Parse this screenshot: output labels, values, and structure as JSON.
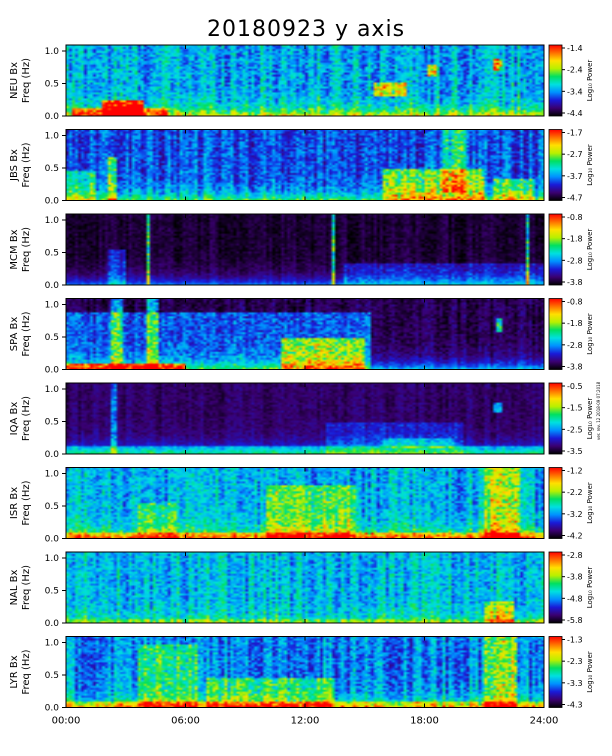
{
  "title": "20180923 y axis",
  "side_note": "ver. rev. 12 2018-09 07:2018",
  "chart_data": {
    "type": "heatmap",
    "x_ticks": [
      "00:00",
      "06:00",
      "12:00",
      "18:00",
      "24:00"
    ],
    "x_range_hours": [
      0,
      24
    ],
    "y_ticks": [
      "0.0",
      "0.5",
      "1.0"
    ],
    "y_range_hz": [
      0,
      1.0
    ],
    "colorbar_label": "Log₁₀ Power",
    "colormap": [
      "#000000",
      "#3a0070",
      "#1a1ad8",
      "#0090ff",
      "#00e0e0",
      "#00e060",
      "#b8f000",
      "#ffe000",
      "#ff7000",
      "#ff0000"
    ],
    "panels": [
      {
        "station": "NEU",
        "ylabel": "NEU Bx",
        "ylabel2": "Freq (Hz)",
        "cb_ticks": [
          "-1.4",
          "-2.4",
          "-3.4",
          "-4.4"
        ],
        "base": 0.38,
        "noise": 0.22,
        "lowboost": 0.35,
        "events": [
          [
            1.8,
            3.8,
            0.0,
            0.2,
            0.55
          ],
          [
            0.3,
            5.0,
            0.0,
            0.1,
            0.3
          ],
          [
            15.5,
            17.2,
            0.28,
            0.48,
            0.35
          ],
          [
            18.2,
            18.6,
            0.55,
            0.72,
            0.4
          ],
          [
            21.5,
            21.9,
            0.65,
            0.8,
            0.4
          ]
        ]
      },
      {
        "station": "JBS",
        "ylabel": "JBS Bx",
        "ylabel2": "Freq (Hz)",
        "cb_ticks": [
          "-1.7",
          "-2.7",
          "-3.7",
          "-4.7"
        ],
        "base": 0.27,
        "noise": 0.18,
        "lowboost": 0.3,
        "events": [
          [
            16.0,
            21.0,
            0.0,
            0.45,
            0.32
          ],
          [
            2.0,
            2.5,
            0.0,
            0.6,
            0.3
          ],
          [
            19.0,
            20.2,
            0.1,
            1.0,
            0.25
          ],
          [
            21.5,
            23.6,
            0.0,
            0.3,
            0.25
          ],
          [
            0,
            1.5,
            0.0,
            0.4,
            0.2
          ]
        ]
      },
      {
        "station": "MCM",
        "ylabel": "MCM Bx",
        "ylabel2": "Freq (Hz)",
        "cb_ticks": [
          "-0.8",
          "-1.8",
          "-2.8",
          "-3.8"
        ],
        "base": 0.05,
        "noise": 0.07,
        "lowboost": 0.25,
        "events": [
          [
            14.0,
            24.0,
            0.0,
            0.3,
            0.12
          ],
          [
            2.0,
            3.0,
            0.0,
            0.5,
            0.15
          ],
          [
            4.0,
            4.12,
            0.0,
            1.0,
            0.45
          ],
          [
            13.4,
            13.5,
            0.0,
            1.0,
            0.45
          ],
          [
            23.2,
            23.3,
            0.0,
            1.0,
            0.4
          ]
        ]
      },
      {
        "station": "SPA",
        "ylabel": "SPA Bx",
        "ylabel2": "Freq (Hz)",
        "cb_ticks": [
          "-0.8",
          "-1.8",
          "-2.8",
          "-3.8"
        ],
        "base": 0.08,
        "noise": 0.1,
        "lowboost": 0.3,
        "events": [
          [
            0.0,
            15.3,
            0.0,
            0.8,
            0.2
          ],
          [
            10.8,
            15.0,
            0.0,
            0.45,
            0.35
          ],
          [
            2.2,
            2.8,
            0.0,
            1.0,
            0.3
          ],
          [
            4.0,
            4.6,
            0.0,
            1.0,
            0.3
          ],
          [
            21.6,
            22.0,
            0.52,
            0.72,
            0.4
          ],
          [
            0.0,
            6.0,
            0.0,
            0.08,
            0.45
          ]
        ]
      },
      {
        "station": "IQA",
        "ylabel": "IQA Bx",
        "ylabel2": "Freq (Hz)",
        "cb_ticks": [
          "-0.5",
          "-1.5",
          "-2.5",
          "-3.5"
        ],
        "base": 0.1,
        "noise": 0.07,
        "lowboost": 0.28,
        "events": [
          [
            0.0,
            24.0,
            0.0,
            0.1,
            0.15
          ],
          [
            2.2,
            2.5,
            0.0,
            1.0,
            0.25
          ],
          [
            13.0,
            20.0,
            0.0,
            0.45,
            0.1
          ],
          [
            16.0,
            19.5,
            0.08,
            0.22,
            0.15
          ],
          [
            21.5,
            22.0,
            0.58,
            0.72,
            0.25
          ]
        ]
      },
      {
        "station": "ISR",
        "ylabel": "ISR Bx",
        "ylabel2": "Freq (Hz)",
        "cb_ticks": [
          "-1.2",
          "-2.2",
          "-3.2",
          "-4.2"
        ],
        "base": 0.38,
        "noise": 0.2,
        "lowboost": 0.32,
        "events": [
          [
            10.0,
            14.5,
            0.0,
            0.75,
            0.22
          ],
          [
            3.5,
            5.5,
            0.0,
            0.5,
            0.15
          ],
          [
            21.0,
            22.8,
            0.0,
            1.0,
            0.3
          ],
          [
            0.0,
            24.0,
            0.0,
            0.08,
            0.2
          ]
        ]
      },
      {
        "station": "NAL",
        "ylabel": "NAL Bx",
        "ylabel2": "Freq (Hz)",
        "cb_ticks": [
          "-2.8",
          "-3.8",
          "-4.8",
          "-5.8"
        ],
        "base": 0.4,
        "noise": 0.2,
        "lowboost": 0.15,
        "events": [
          [
            21.0,
            22.5,
            0.0,
            0.3,
            0.25
          ],
          [
            0.0,
            24.0,
            0.0,
            0.05,
            0.1
          ]
        ]
      },
      {
        "station": "LYR",
        "ylabel": "LYR Bx",
        "ylabel2": "Freq (Hz)",
        "cb_ticks": [
          "-1.3",
          "-2.3",
          "-3.3",
          "-4.3"
        ],
        "base": 0.33,
        "noise": 0.2,
        "lowboost": 0.3,
        "events": [
          [
            3.5,
            6.5,
            0.0,
            0.9,
            0.2
          ],
          [
            7.0,
            13.5,
            0.0,
            0.4,
            0.2
          ],
          [
            21.0,
            22.7,
            0.0,
            1.0,
            0.3
          ],
          [
            0.0,
            24.0,
            0.0,
            0.07,
            0.2
          ]
        ]
      }
    ]
  }
}
